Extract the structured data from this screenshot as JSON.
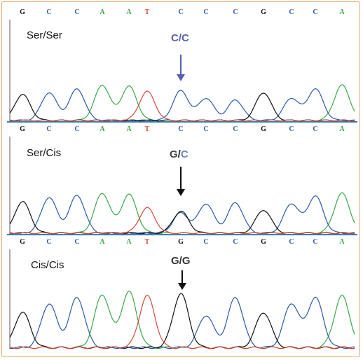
{
  "colors": {
    "A": "#3aa84a",
    "C": "#2b5aa8",
    "G": "#111111",
    "T": "#d8473a",
    "base_C_label": "#4a6fa8",
    "base_G_label": "#555555",
    "arrow_panel1": "#5b5fb0",
    "arrow_default": "#111111",
    "frame": "#e9a36a",
    "separator": "#3b7fa8"
  },
  "panels": [
    {
      "sequence": [
        "G",
        "C",
        "C",
        "A",
        "A",
        "T",
        "C",
        "C",
        "C",
        "G",
        "C",
        "C",
        "A"
      ],
      "genotype_label": "Ser/Ser",
      "call": {
        "first": "C",
        "slash": "/",
        "second": "C"
      },
      "call_colors": [
        "#5b5fb0",
        "#5b5fb0",
        "#5b5fb0"
      ],
      "arrow_color": "#5b5fb0"
    },
    {
      "sequence": [
        "G",
        "C",
        "C",
        "A",
        "A",
        "T",
        "C",
        "C",
        "C",
        "G",
        "C",
        "C",
        "A"
      ],
      "genotype_label": "Ser/Cis",
      "call": {
        "first": "G",
        "slash": "/",
        "second": "C"
      },
      "call_colors": [
        "#444444",
        "#222222",
        "#6a86b0"
      ],
      "arrow_color": "#111111"
    },
    {
      "sequence": [
        "G",
        "C",
        "C",
        "A",
        "A",
        "T",
        "G",
        "C",
        "C",
        "G",
        "C",
        "C",
        "A"
      ],
      "genotype_label": "Cis/Cis",
      "call": {
        "first": "G",
        "slash": "/",
        "second": "G"
      },
      "call_colors": [
        "#333333",
        "#333333",
        "#333333"
      ],
      "arrow_color": "#111111"
    }
  ]
}
